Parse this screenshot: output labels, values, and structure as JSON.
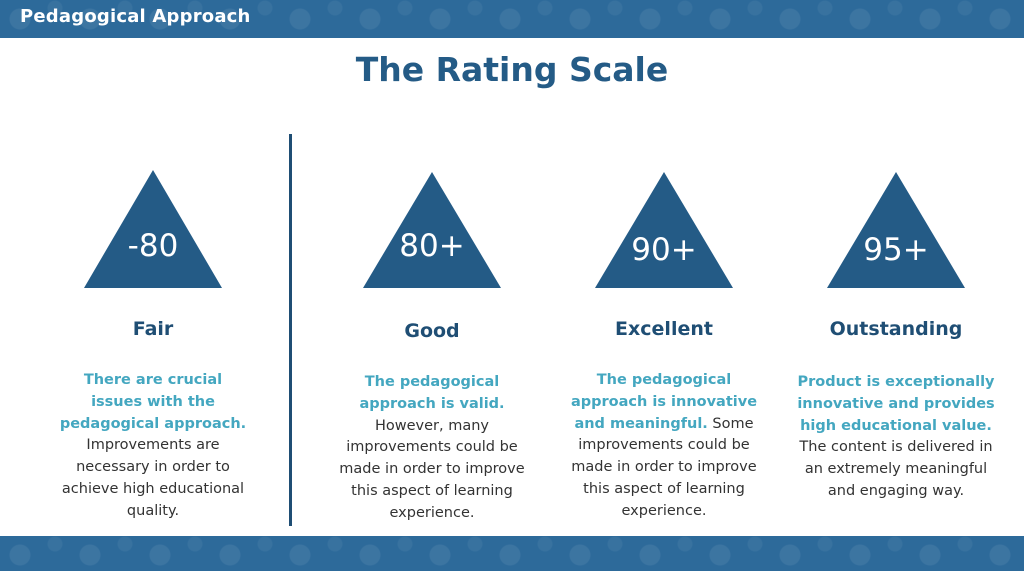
{
  "header": {
    "title": "Pedagogical Approach"
  },
  "page_title": "The Rating Scale",
  "colors": {
    "band": "#2d6a9a",
    "triangle": "#245b86",
    "title": "#245b86",
    "highlight": "#44a7c0",
    "body_text": "#333333"
  },
  "ratings": [
    {
      "value": "-80",
      "label": "Fair",
      "highlight": "There are crucial issues with the pedagogical approach.",
      "text": "Improvements are necessary in order to achieve high educational quality."
    },
    {
      "value": "80+",
      "label": "Good",
      "highlight": "The pedagogical approach is valid.",
      "text": "However, many improvements could be made in order to improve this aspect of learning experience."
    },
    {
      "value": "90+",
      "label": "Excellent",
      "highlight": "The pedagogical approach is innovative and meaningful.",
      "text": "Some improvements could be made in order to improve this aspect of learning experience."
    },
    {
      "value": "95+",
      "label": "Outstanding",
      "highlight": "Product is exceptionally innovative and provides high educational value.",
      "text": "The content is delivered in an extremely meaningful and engaging way."
    }
  ]
}
